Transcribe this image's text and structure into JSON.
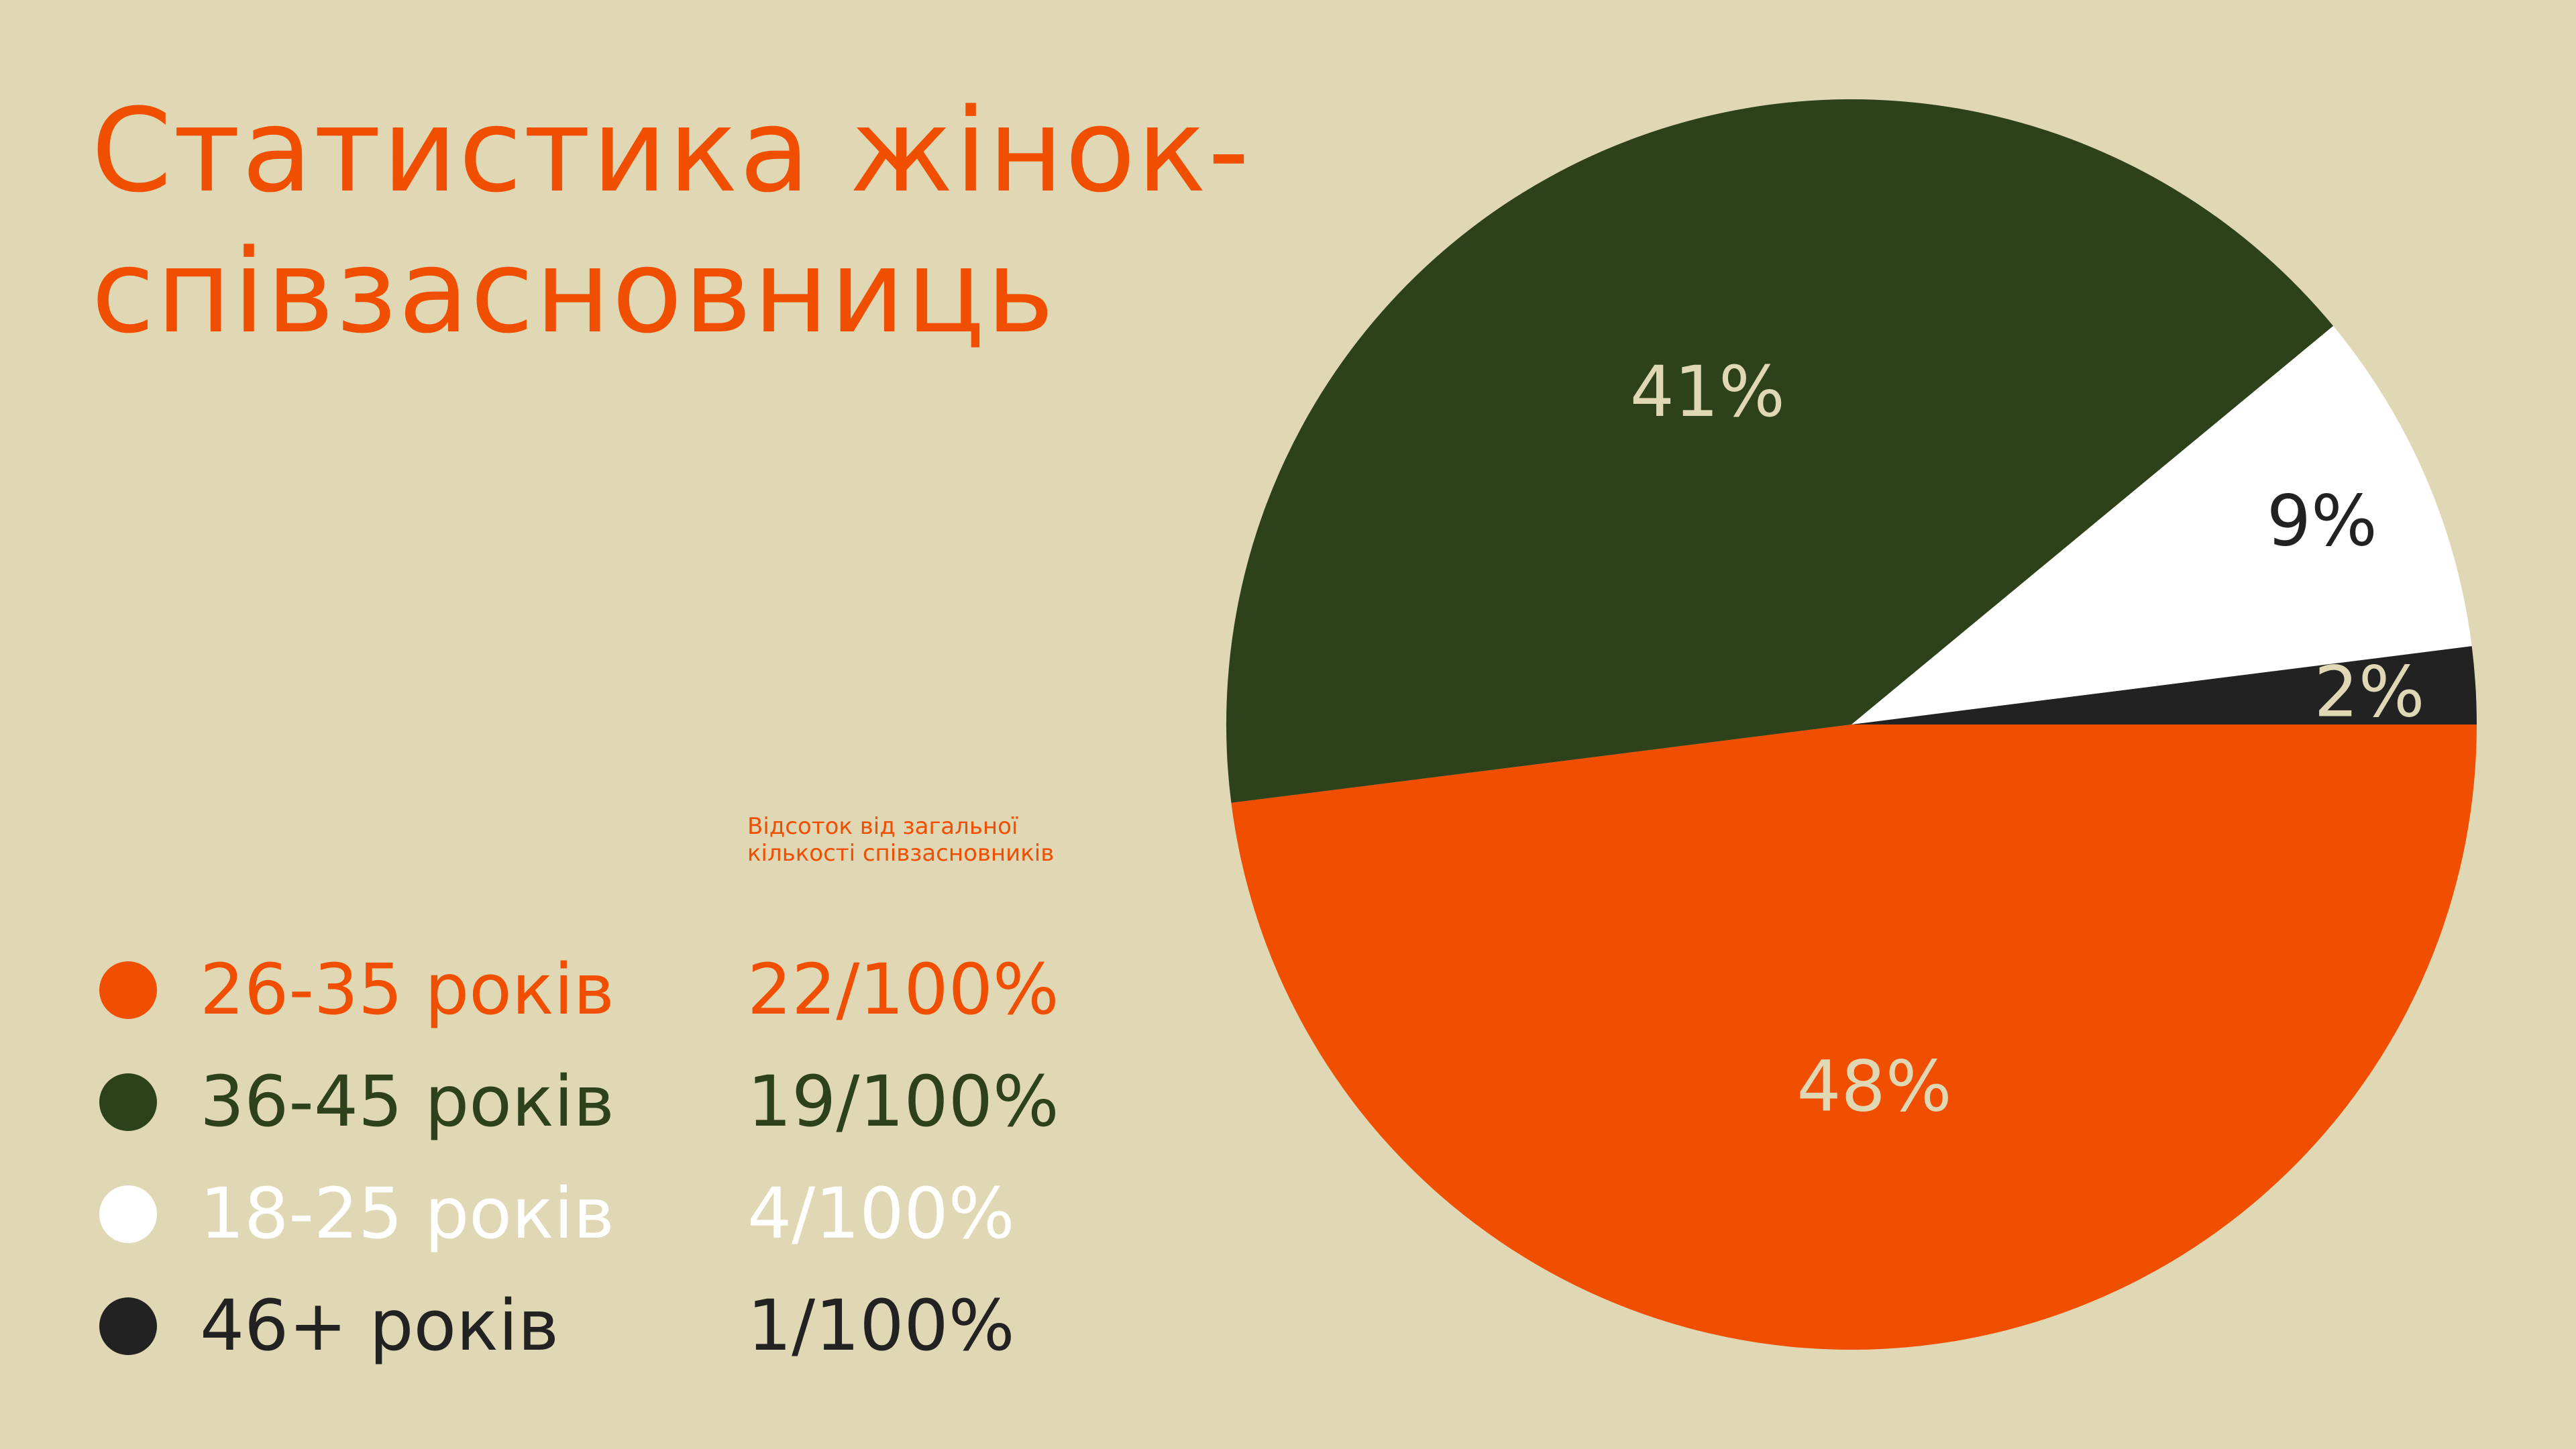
{
  "title": {
    "line1": "Статистика жінок-",
    "line2": "співзасновниць"
  },
  "note": {
    "line1": "Відсоток від загальної",
    "line2": "кількості співзасновників"
  },
  "legend": [
    {
      "label": "26-35 років",
      "ratio": "22/100%",
      "color": "#f04e00"
    },
    {
      "label": "36-45 років",
      "ratio": "19/100%",
      "color": "#2d421a"
    },
    {
      "label": "18-25 років",
      "ratio": "4/100%",
      "color": "#ffffff"
    },
    {
      "label": "46+ років",
      "ratio": "1/100%",
      "color": "#222222"
    }
  ],
  "chart_data": {
    "type": "pie",
    "title": "Статистика жінок-співзасновниць",
    "slices": [
      {
        "category": "26-35 років",
        "value": 48,
        "label": "48%",
        "color": "#f04e00",
        "label_color": "#e0d8b5"
      },
      {
        "category": "36-45 років",
        "value": 41,
        "label": "41%",
        "color": "#2d421a",
        "label_color": "#e0d8b5"
      },
      {
        "category": "18-25 років",
        "value": 9,
        "label": "9%",
        "color": "#ffffff",
        "label_color": "#222222"
      },
      {
        "category": "46+ років",
        "value": 2,
        "label": "2%",
        "color": "#222222",
        "label_color": "#e0d8b5"
      }
    ],
    "start": "3 o'clock",
    "direction": "clockwise",
    "legend_position": "left"
  }
}
